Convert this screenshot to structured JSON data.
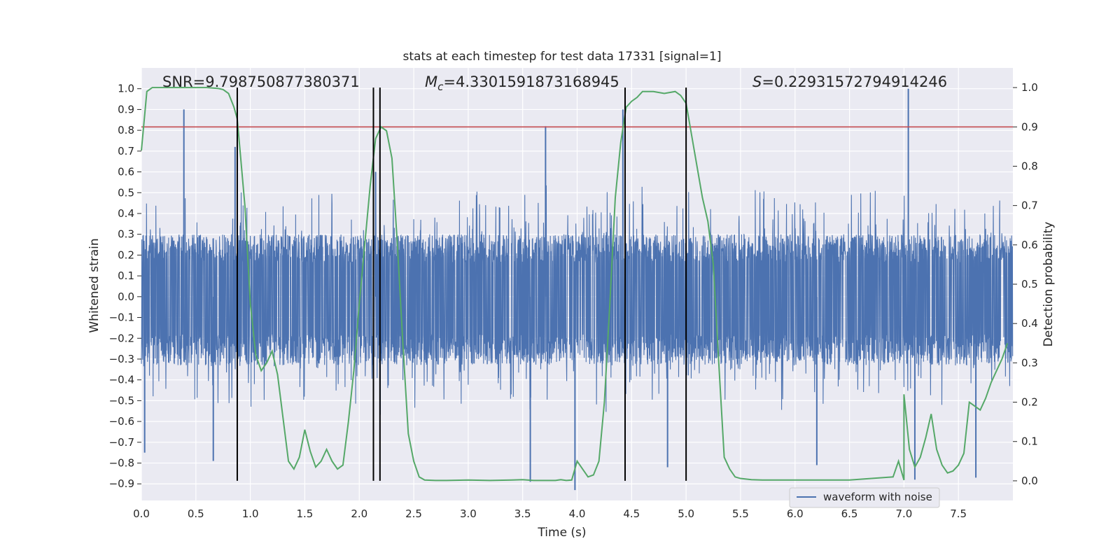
{
  "chart_data": {
    "type": "line",
    "title": "stats at each timestep for test data 17331 [signal=1]",
    "xlabel": "Time (s)",
    "ylabel_left": "Whitened strain",
    "ylabel_right": "Detection probability",
    "xlim": [
      0.0,
      8.0
    ],
    "ylim_left": [
      -0.98,
      1.1
    ],
    "ylim_right": [
      -0.05,
      1.05
    ],
    "x_ticks": [
      "0.0",
      "0.5",
      "1.0",
      "1.5",
      "2.0",
      "2.5",
      "3.0",
      "3.5",
      "4.0",
      "4.5",
      "5.0",
      "5.5",
      "6.0",
      "6.5",
      "7.0",
      "7.5"
    ],
    "y_ticks_left": [
      "−0.9",
      "−0.8",
      "−0.7",
      "−0.6",
      "−0.5",
      "−0.4",
      "−0.3",
      "−0.2",
      "−0.1",
      "0.0",
      "0.1",
      "0.2",
      "0.3",
      "0.4",
      "0.5",
      "0.6",
      "0.7",
      "0.8",
      "0.9",
      "1.0"
    ],
    "y_ticks_right": [
      "0.0",
      "0.1",
      "0.2",
      "0.3",
      "0.4",
      "0.5",
      "0.6",
      "0.7",
      "0.8",
      "0.9",
      "1.0"
    ],
    "grid": true,
    "legend": {
      "placement": "lower-right",
      "entries": [
        "waveform with noise"
      ]
    },
    "annotations": {
      "snr": "SNR=9.798750877380371",
      "mc_symbol": "M",
      "mc_sub": "c",
      "mc_value": "=4.3301591873168945",
      "s_symbol": "S",
      "s_value": "=0.22931572794914246"
    },
    "threshold": {
      "axis": "right",
      "value": 0.9,
      "color": "#c44e52"
    },
    "vlines": [
      0.88,
      2.13,
      2.19,
      4.44,
      5.0
    ],
    "series": [
      {
        "name": "waveform with noise",
        "axis": "left",
        "color": "#4c72b0",
        "sample_rate": 512,
        "envelope": {
          "typical_max": 0.3,
          "typical_min": -0.33,
          "spikes": [
            {
              "x": 0.39,
              "y": 0.9
            },
            {
              "x": 0.86,
              "y": 0.72
            },
            {
              "x": 2.15,
              "y": 0.6
            },
            {
              "x": 3.71,
              "y": 0.82
            },
            {
              "x": 4.42,
              "y": 0.9
            },
            {
              "x": 7.04,
              "y": 1.0
            },
            {
              "x": 0.03,
              "y": -0.75
            },
            {
              "x": 0.66,
              "y": -0.79
            },
            {
              "x": 3.57,
              "y": -0.89
            },
            {
              "x": 3.98,
              "y": -0.93
            },
            {
              "x": 4.83,
              "y": -0.82
            },
            {
              "x": 6.2,
              "y": -0.81
            },
            {
              "x": 7.1,
              "y": -0.88
            },
            {
              "x": 7.66,
              "y": -0.87
            }
          ]
        }
      },
      {
        "name": "",
        "axis": "right",
        "color": "#55a868",
        "x": [
          0.0,
          0.05,
          0.1,
          0.2,
          0.3,
          0.4,
          0.5,
          0.6,
          0.7,
          0.75,
          0.8,
          0.85,
          0.88,
          0.95,
          1.0,
          1.05,
          1.1,
          1.15,
          1.2,
          1.25,
          1.3,
          1.35,
          1.4,
          1.45,
          1.5,
          1.55,
          1.6,
          1.65,
          1.7,
          1.75,
          1.8,
          1.85,
          1.9,
          1.95,
          2.0,
          2.05,
          2.1,
          2.15,
          2.2,
          2.25,
          2.3,
          2.35,
          2.4,
          2.45,
          2.5,
          2.55,
          2.6,
          2.7,
          2.8,
          3.0,
          3.2,
          3.4,
          3.5,
          3.6,
          3.7,
          3.8,
          3.85,
          3.9,
          3.95,
          4.0,
          4.05,
          4.1,
          4.15,
          4.2,
          4.25,
          4.3,
          4.35,
          4.4,
          4.45,
          4.5,
          4.55,
          4.6,
          4.7,
          4.8,
          4.9,
          4.95,
          5.0,
          5.05,
          5.1,
          5.15,
          5.2,
          5.25,
          5.3,
          5.35,
          5.4,
          5.45,
          5.5,
          5.6,
          5.7,
          5.8,
          6.0,
          6.5,
          7.0,
          6.9,
          6.95,
          7.0,
          7.05,
          7.1,
          7.15,
          7.2,
          7.25,
          7.3,
          7.35,
          7.4,
          7.45,
          7.5,
          7.55,
          7.6,
          7.65,
          7.7,
          7.75,
          7.8,
          7.85,
          7.9,
          7.95
        ],
        "y": [
          0.84,
          0.99,
          1.0,
          1.0,
          1.0,
          1.0,
          1.0,
          1.0,
          0.998,
          0.995,
          0.985,
          0.95,
          0.92,
          0.7,
          0.45,
          0.32,
          0.28,
          0.3,
          0.33,
          0.27,
          0.16,
          0.05,
          0.03,
          0.06,
          0.13,
          0.075,
          0.035,
          0.05,
          0.08,
          0.05,
          0.03,
          0.04,
          0.15,
          0.28,
          0.45,
          0.6,
          0.75,
          0.87,
          0.9,
          0.89,
          0.82,
          0.6,
          0.35,
          0.12,
          0.05,
          0.01,
          0.002,
          0.001,
          0.001,
          0.002,
          0.001,
          0.002,
          0.003,
          0.001,
          0.001,
          0.001,
          0.003,
          0.001,
          0.002,
          0.05,
          0.03,
          0.01,
          0.015,
          0.05,
          0.2,
          0.45,
          0.72,
          0.86,
          0.95,
          0.965,
          0.975,
          0.99,
          0.99,
          0.985,
          0.99,
          0.98,
          0.96,
          0.88,
          0.8,
          0.72,
          0.66,
          0.55,
          0.3,
          0.06,
          0.03,
          0.01,
          0.006,
          0.003,
          0.002,
          0.002,
          0.002,
          0.002,
          0.002,
          0.01,
          0.05,
          0.22,
          0.08,
          0.035,
          0.06,
          0.11,
          0.17,
          0.08,
          0.04,
          0.02,
          0.025,
          0.04,
          0.07,
          0.2,
          0.19,
          0.18,
          0.21,
          0.25,
          0.28,
          0.31,
          0.35
        ]
      }
    ]
  }
}
